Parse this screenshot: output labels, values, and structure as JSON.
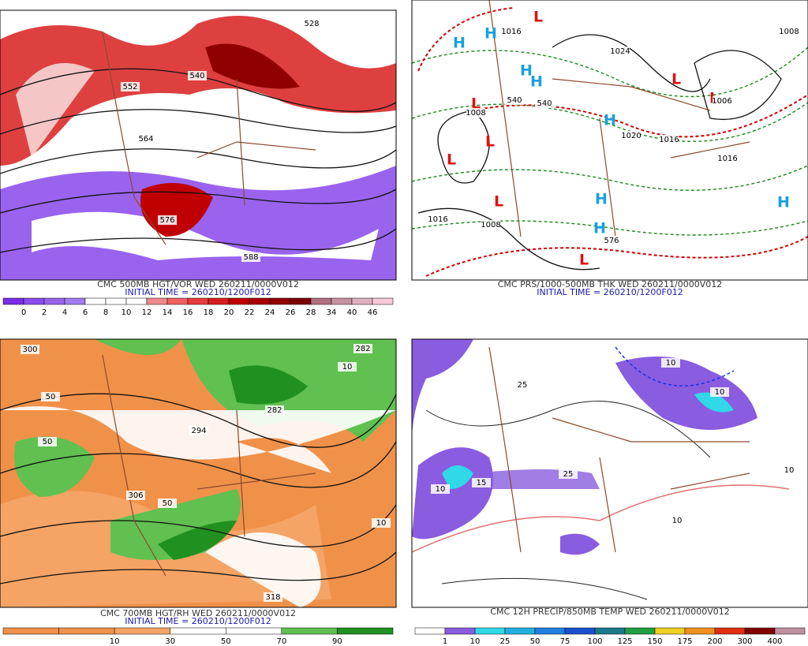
{
  "panels": [
    {
      "title": "CMC 500MB HGT/VOR WED 260211/0000V012",
      "subtitle": "INITIAL TIME = 260210/1200F012",
      "colorbar": {
        "colors": [
          "#7a2ee6",
          "#8c4cf0",
          "#9a63ee",
          "#a07cf0",
          "#ffffff",
          "#ffffff",
          "#ffffff",
          "#f08a8a",
          "#f06060",
          "#e83c3c",
          "#d81e1e",
          "#c00000",
          "#a80000",
          "#900000",
          "#7a0000",
          "#b07080",
          "#c890a0",
          "#e0b0c0",
          "#f8c8d8"
        ],
        "labels": [
          0,
          2,
          4,
          6,
          8,
          10,
          12,
          14,
          16,
          18,
          20,
          22,
          24,
          26,
          28,
          34,
          40,
          46
        ]
      },
      "map_labels": [
        "528",
        "552",
        "540",
        "564",
        "576",
        "588"
      ]
    },
    {
      "title": "CMC PRS/1000-500MB THK WED 260211/0000V012",
      "subtitle": "INITIAL TIME = 260210/1200F012",
      "map_labels": [
        "H",
        "H",
        "H",
        "H",
        "H",
        "H",
        "H",
        "H",
        "L",
        "L",
        "L",
        "L",
        "L",
        "L",
        "L",
        "L",
        "1016",
        "1024",
        "1008",
        "540",
        "540",
        "1020",
        "1016",
        "1016",
        "1008",
        "1016",
        "576",
        "1008",
        "1006"
      ]
    },
    {
      "title": "CMC 700MB HGT/RH WED 260211/0000V012",
      "subtitle": "INITIAL TIME = 260210/1200F012",
      "colorbar": {
        "colors": [
          "#f0914a",
          "#f0914a",
          "#f5a466",
          "#ffffff",
          "#ffffff",
          "#60c050",
          "#209020"
        ],
        "labels": [
          10,
          30,
          50,
          70,
          90
        ]
      },
      "map_labels": [
        "300",
        "282",
        "294",
        "50",
        "10",
        "50",
        "306",
        "318",
        "50",
        "10",
        "282"
      ]
    },
    {
      "title": "CMC 12H PRECIP/850MB TEMP WED 260211/0000V012",
      "colorbar": {
        "colors": [
          "#ffffff",
          "#8a5ce0",
          "#30d8e8",
          "#20b0e0",
          "#2080e0",
          "#1a50d0",
          "#1a7a8a",
          "#20a040",
          "#f0d020",
          "#f09020",
          "#e03010",
          "#800000",
          "#c090a0"
        ],
        "labels": [
          1,
          10,
          25,
          50,
          75,
          100,
          125,
          150,
          175,
          200,
          300,
          400
        ]
      },
      "map_labels": [
        "10",
        "10",
        "25",
        "10",
        "10",
        "10",
        "15",
        "25"
      ]
    }
  ]
}
